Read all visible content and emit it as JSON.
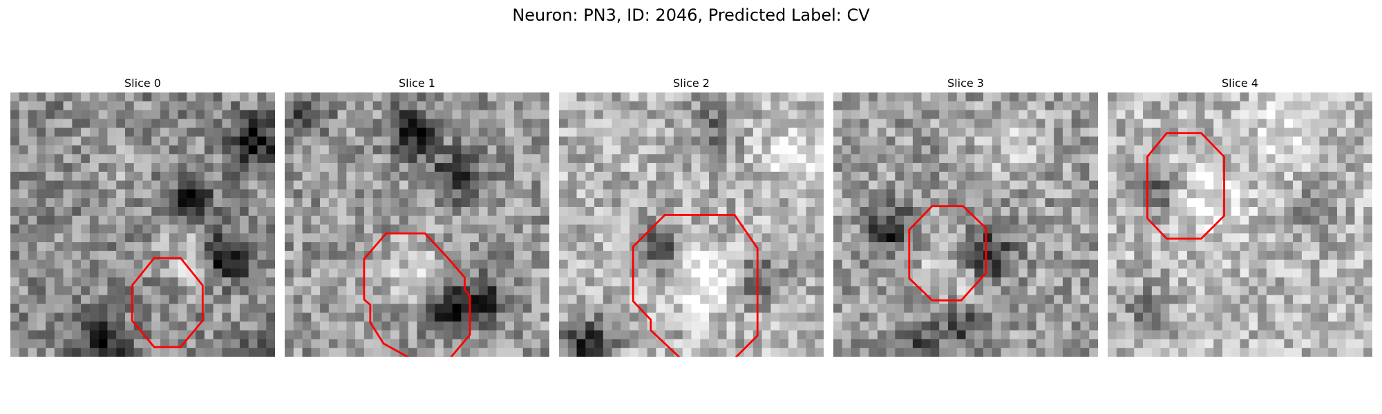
{
  "figure": {
    "title": "Neuron: PN3, ID: 2046, Predicted Label: CV",
    "colormap": "gray",
    "contour_color": "#ff0000",
    "slices": [
      {
        "label": "Slice 0",
        "dark_spots": [
          [
            27,
            5,
            0.55
          ],
          [
            24,
            18,
            0.6
          ],
          [
            20,
            12,
            0.4
          ],
          [
            10,
            28,
            0.45
          ],
          [
            29,
            29,
            0.35
          ]
        ],
        "bright_spots": [
          [
            20,
            18,
            0.25
          ],
          [
            12,
            8,
            0.1
          ]
        ],
        "base": 0.55,
        "contour": [
          [
            16.3,
            18.8
          ],
          [
            13.8,
            21.9
          ],
          [
            13.8,
            25.9
          ],
          [
            16.3,
            28.9
          ],
          [
            19.3,
            28.9
          ],
          [
            21.8,
            25.9
          ],
          [
            21.8,
            21.9
          ],
          [
            19.3,
            18.8
          ]
        ]
      },
      {
        "label": "Slice 1",
        "dark_spots": [
          [
            14,
            4,
            0.5
          ],
          [
            19,
            9,
            0.45
          ],
          [
            18,
            24,
            0.5
          ],
          [
            22,
            23,
            0.4
          ],
          [
            2,
            2,
            0.3
          ]
        ],
        "bright_spots": [
          [
            14,
            20,
            0.2
          ]
        ],
        "base": 0.6,
        "contour": [
          [
            11.5,
            16.0
          ],
          [
            9.0,
            18.9
          ],
          [
            9.0,
            23.5
          ],
          [
            9.7,
            24.1
          ],
          [
            9.7,
            26.1
          ],
          [
            11.2,
            28.5
          ],
          [
            14.1,
            30.1
          ],
          [
            18.8,
            30.1
          ],
          [
            21.0,
            27.5
          ],
          [
            21.0,
            23.1
          ],
          [
            20.4,
            22.4
          ],
          [
            20.4,
            21.0
          ],
          [
            18.5,
            18.8
          ],
          [
            15.9,
            16.0
          ]
        ]
      },
      {
        "label": "Slice 2",
        "dark_spots": [
          [
            3,
            28,
            0.6
          ],
          [
            11,
            17,
            0.35
          ],
          [
            22,
            21,
            0.35
          ],
          [
            17,
            3,
            0.3
          ]
        ],
        "bright_spots": [
          [
            16,
            21,
            0.3
          ],
          [
            26,
            6,
            0.2
          ]
        ],
        "base": 0.7,
        "contour": [
          [
            12.0,
            13.9
          ],
          [
            8.4,
            17.5
          ],
          [
            8.4,
            23.7
          ],
          [
            10.4,
            25.8
          ],
          [
            10.4,
            27.0
          ],
          [
            13.8,
            30.2
          ],
          [
            19.9,
            30.2
          ],
          [
            22.5,
            27.6
          ],
          [
            22.5,
            17.7
          ],
          [
            19.9,
            13.9
          ]
        ]
      },
      {
        "label": "Slice 3",
        "dark_spots": [
          [
            6,
            15,
            0.45
          ],
          [
            17,
            18,
            0.55
          ],
          [
            14,
            26,
            0.35
          ],
          [
            9,
            28,
            0.3
          ]
        ],
        "bright_spots": [
          [
            13,
            20,
            0.2
          ],
          [
            20,
            5,
            0.2
          ]
        ],
        "base": 0.62,
        "contour": [
          [
            11.2,
            12.9
          ],
          [
            8.6,
            15.6
          ],
          [
            8.6,
            21.1
          ],
          [
            11.2,
            23.6
          ],
          [
            14.5,
            23.6
          ],
          [
            17.3,
            20.5
          ],
          [
            17.3,
            15.4
          ],
          [
            14.7,
            12.9
          ]
        ]
      },
      {
        "label": "Slice 4",
        "dark_spots": [
          [
            5,
            11,
            0.35
          ],
          [
            4,
            24,
            0.25
          ],
          [
            23,
            13,
            0.25
          ]
        ],
        "bright_spots": [
          [
            11,
            12,
            0.25
          ],
          [
            20,
            3,
            0.2
          ]
        ],
        "base": 0.72,
        "contour": [
          [
            6.7,
            4.6
          ],
          [
            4.5,
            7.3
          ],
          [
            4.5,
            14.3
          ],
          [
            6.7,
            16.6
          ],
          [
            10.6,
            16.6
          ],
          [
            13.2,
            14.0
          ],
          [
            13.2,
            7.3
          ],
          [
            10.6,
            4.6
          ]
        ]
      }
    ]
  }
}
